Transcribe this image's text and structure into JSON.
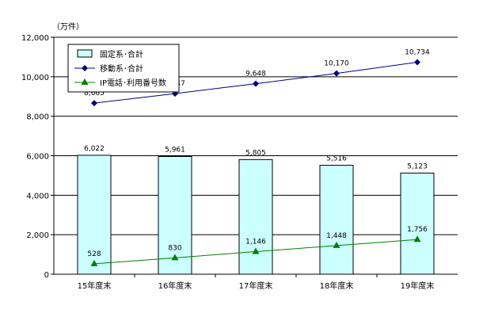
{
  "chart_data": {
    "type": "bar",
    "unit_label": "（万件）",
    "categories": [
      "15年度末",
      "16年度末",
      "17年度末",
      "18年度末",
      "19年度末"
    ],
    "ylim": [
      0,
      12000
    ],
    "yticks": [
      0,
      2000,
      4000,
      6000,
      8000,
      10000,
      12000
    ],
    "ytick_labels": [
      "0",
      "2,000",
      "4,000",
      "6,000",
      "8,000",
      "10,000",
      "12,000"
    ],
    "grid": true,
    "legend_position": "top-left",
    "series": [
      {
        "name": "固定系･合計",
        "kind": "bar",
        "color": "#ccffff",
        "stroke": "#000000",
        "values": [
          6022,
          5961,
          5805,
          5516,
          5123
        ],
        "labels": [
          "6,022",
          "5,961",
          "5,805",
          "5,516",
          "5,123"
        ]
      },
      {
        "name": "移動系･合計",
        "kind": "line",
        "color": "#000080",
        "marker": "diamond",
        "values": [
          8665,
          9147,
          9648,
          10170,
          10734
        ],
        "labels": [
          "8,665",
          "9,147",
          "9,648",
          "10,170",
          "10,734"
        ]
      },
      {
        "name": "IP電話･利用番号数",
        "kind": "line",
        "color": "#008000",
        "marker": "triangle",
        "values": [
          528,
          830,
          1146,
          1448,
          1756
        ],
        "labels": [
          "528",
          "830",
          "1,146",
          "1,448",
          "1,756"
        ]
      }
    ]
  }
}
